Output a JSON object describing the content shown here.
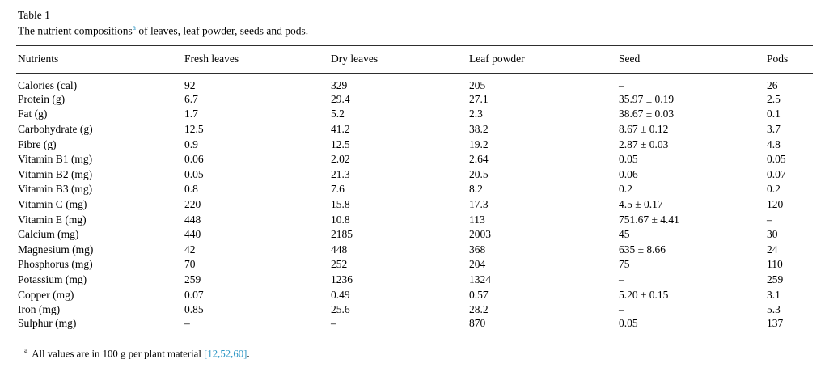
{
  "colors": {
    "link_blue": "#2e97c5",
    "rule": "#2e2e2e",
    "text": "#000000"
  },
  "table": {
    "label": "Table 1",
    "caption": {
      "prefix": "The nutrient compositions",
      "marker": "a",
      "suffix": " of leaves, leaf powder, seeds and pods."
    },
    "columns": [
      "Nutrients",
      "Fresh leaves",
      "Dry leaves",
      "Leaf powder",
      "Seed",
      "Pods"
    ],
    "rows": [
      {
        "nutrient": "Calories (cal)",
        "values": [
          "92",
          "329",
          "205",
          "–",
          "26"
        ]
      },
      {
        "nutrient": "Protein (g)",
        "values": [
          "6.7",
          "29.4",
          "27.1",
          "35.97 ± 0.19",
          "2.5"
        ]
      },
      {
        "nutrient": "Fat (g)",
        "values": [
          "1.7",
          "5.2",
          "2.3",
          "38.67 ± 0.03",
          "0.1"
        ]
      },
      {
        "nutrient": "Carbohydrate (g)",
        "values": [
          "12.5",
          "41.2",
          "38.2",
          "8.67 ± 0.12",
          "3.7"
        ]
      },
      {
        "nutrient": "Fibre (g)",
        "values": [
          "0.9",
          "12.5",
          "19.2",
          "2.87 ± 0.03",
          "4.8"
        ]
      },
      {
        "nutrient": "Vitamin B1 (mg)",
        "values": [
          "0.06",
          "2.02",
          "2.64",
          "0.05",
          "0.05"
        ]
      },
      {
        "nutrient": "Vitamin B2 (mg)",
        "values": [
          "0.05",
          "21.3",
          "20.5",
          "0.06",
          "0.07"
        ]
      },
      {
        "nutrient": "Vitamin B3 (mg)",
        "values": [
          "0.8",
          "7.6",
          "8.2",
          "0.2",
          "0.2"
        ]
      },
      {
        "nutrient": "Vitamin C (mg)",
        "values": [
          "220",
          "15.8",
          "17.3",
          "4.5 ± 0.17",
          "120"
        ]
      },
      {
        "nutrient": "Vitamin E (mg)",
        "values": [
          "448",
          "10.8",
          "113",
          "751.67 ± 4.41",
          "–"
        ]
      },
      {
        "nutrient": "Calcium (mg)",
        "values": [
          "440",
          "2185",
          "2003",
          "45",
          "30"
        ]
      },
      {
        "nutrient": "Magnesium (mg)",
        "values": [
          "42",
          "448",
          "368",
          "635 ± 8.66",
          "24"
        ]
      },
      {
        "nutrient": "Phosphorus (mg)",
        "values": [
          "70",
          "252",
          "204",
          "75",
          "110"
        ]
      },
      {
        "nutrient": "Potassium (mg)",
        "values": [
          "259",
          "1236",
          "1324",
          "–",
          "259"
        ]
      },
      {
        "nutrient": "Copper (mg)",
        "values": [
          "0.07",
          "0.49",
          "0.57",
          "5.20 ± 0.15",
          "3.1"
        ]
      },
      {
        "nutrient": "Iron (mg)",
        "values": [
          "0.85",
          "25.6",
          "28.2",
          "–",
          "5.3"
        ]
      },
      {
        "nutrient": "Sulphur (mg)",
        "values": [
          "–",
          "–",
          "870",
          "0.05",
          "137"
        ]
      }
    ],
    "footnote": {
      "marker": "a",
      "text": "All values are in 100 g per plant material ",
      "citation": "[12,52,60]",
      "period": "."
    }
  }
}
